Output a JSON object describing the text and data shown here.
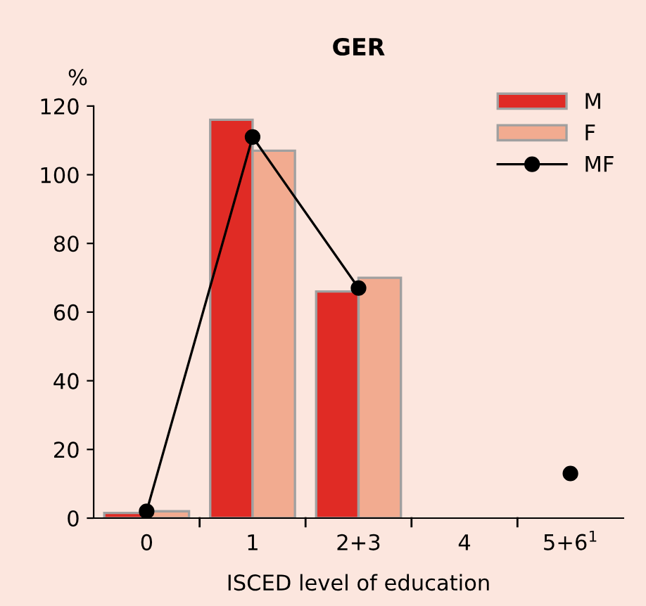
{
  "chart_data": {
    "type": "bar",
    "title": "GER",
    "ylabel": "%",
    "xlabel": "ISCED level of education",
    "categories": [
      "0",
      "1",
      "2+3",
      "4",
      "5+6$^{1}$"
    ],
    "series": [
      {
        "name": "M",
        "color": "#e02b25",
        "values": [
          1.5,
          116,
          66,
          null,
          null
        ]
      },
      {
        "name": "F",
        "color": "#f2ab90",
        "values": [
          2,
          107,
          70,
          null,
          null
        ]
      },
      {
        "name": "MF",
        "type": "line",
        "color": "#000000",
        "marker": "circle",
        "values": [
          2,
          111,
          67,
          null,
          13
        ]
      }
    ],
    "ylim": [
      0,
      120
    ],
    "yticks": [
      0,
      20,
      40,
      60,
      80,
      100,
      120
    ],
    "grid": false,
    "legend": "top right"
  }
}
